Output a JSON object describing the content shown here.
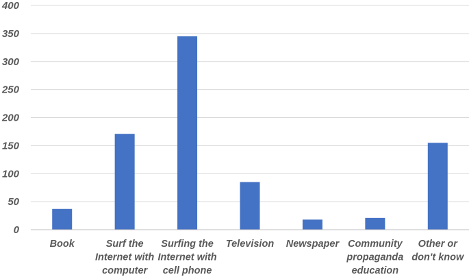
{
  "chart_data": {
    "type": "bar",
    "categories": [
      [
        "Book"
      ],
      [
        "Surf the",
        "Internet with",
        "computer"
      ],
      [
        "Surfing the",
        "Internet with",
        "cell phone"
      ],
      [
        "Television"
      ],
      [
        "Newspaper"
      ],
      [
        "Community",
        "propaganda",
        "education"
      ],
      [
        "Other or",
        "don't know"
      ]
    ],
    "values": [
      37,
      171,
      345,
      85,
      18,
      21,
      155
    ],
    "ylim": [
      0,
      400
    ],
    "yticks": [
      0,
      50,
      100,
      150,
      200,
      250,
      300,
      350,
      400
    ],
    "grid": true,
    "bar_color": "#4472c4",
    "title": "",
    "xlabel": "",
    "ylabel": ""
  }
}
